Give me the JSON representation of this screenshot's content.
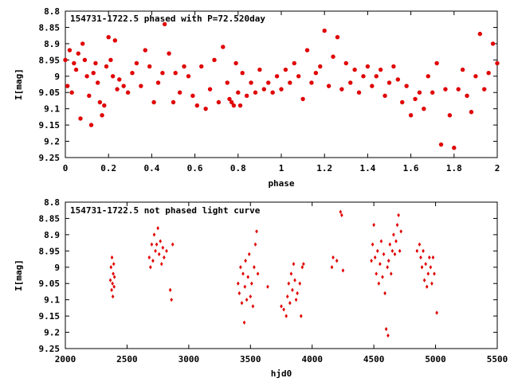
{
  "chart_data": [
    {
      "type": "scatter",
      "title": "154731-1722.5 phased with P=72.520day",
      "xlabel": "phase",
      "ylabel": "I[mag]",
      "xlim": [
        0,
        2
      ],
      "ylim": [
        9.25,
        8.8
      ],
      "y_inverted": true,
      "grid": false,
      "x_ticks": [
        0,
        0.2,
        0.4,
        0.6,
        0.8,
        1,
        1.2,
        1.4,
        1.6,
        1.8,
        2
      ],
      "x_tick_labels": [
        "0",
        "0.2",
        "0.4",
        "0.6",
        "0.8",
        "1",
        "1.2",
        "1.4",
        "1.6",
        "1.8",
        "2"
      ],
      "y_ticks": [
        8.8,
        8.85,
        8.9,
        8.95,
        9,
        9.05,
        9.1,
        9.15,
        9.2,
        9.25
      ],
      "y_tick_labels": [
        "8.8",
        "8.85",
        "8.9",
        "8.95",
        "9",
        "9.05",
        "9.1",
        "9.15",
        "9.2",
        "9.25"
      ],
      "marker": "filled-circle",
      "color": "#e00000",
      "points": [
        [
          0.0,
          8.95
        ],
        [
          0.01,
          9.03
        ],
        [
          0.02,
          8.92
        ],
        [
          0.03,
          9.05
        ],
        [
          0.04,
          8.96
        ],
        [
          0.05,
          8.98
        ],
        [
          0.06,
          8.93
        ],
        [
          0.07,
          9.13
        ],
        [
          0.08,
          8.9
        ],
        [
          0.09,
          8.95
        ],
        [
          0.1,
          9.0
        ],
        [
          0.11,
          9.06
        ],
        [
          0.12,
          9.15
        ],
        [
          0.13,
          8.99
        ],
        [
          0.14,
          8.96
        ],
        [
          0.15,
          9.02
        ],
        [
          0.16,
          9.08
        ],
        [
          0.17,
          9.12
        ],
        [
          0.18,
          9.09
        ],
        [
          0.19,
          8.97
        ],
        [
          0.2,
          8.88
        ],
        [
          0.21,
          8.95
        ],
        [
          0.22,
          9.0
        ],
        [
          0.23,
          8.89
        ],
        [
          0.24,
          9.04
        ],
        [
          0.25,
          9.01
        ],
        [
          0.27,
          9.03
        ],
        [
          0.29,
          9.05
        ],
        [
          0.31,
          8.99
        ],
        [
          0.33,
          8.96
        ],
        [
          0.35,
          9.03
        ],
        [
          0.37,
          8.92
        ],
        [
          0.39,
          8.97
        ],
        [
          0.41,
          9.08
        ],
        [
          0.43,
          9.02
        ],
        [
          0.45,
          8.99
        ],
        [
          0.46,
          8.84
        ],
        [
          0.48,
          8.93
        ],
        [
          0.5,
          9.08
        ],
        [
          0.51,
          8.99
        ],
        [
          0.53,
          9.05
        ],
        [
          0.55,
          8.97
        ],
        [
          0.57,
          9.0
        ],
        [
          0.59,
          9.06
        ],
        [
          0.61,
          9.09
        ],
        [
          0.63,
          8.97
        ],
        [
          0.65,
          9.1
        ],
        [
          0.67,
          9.04
        ],
        [
          0.69,
          8.95
        ],
        [
          0.71,
          9.08
        ],
        [
          0.73,
          8.91
        ],
        [
          0.75,
          9.02
        ],
        [
          0.76,
          9.07
        ],
        [
          0.77,
          9.08
        ],
        [
          0.78,
          9.09
        ],
        [
          0.79,
          8.96
        ],
        [
          0.8,
          9.05
        ],
        [
          0.81,
          9.09
        ],
        [
          0.82,
          8.99
        ],
        [
          0.84,
          9.06
        ],
        [
          0.86,
          9.02
        ],
        [
          0.88,
          9.05
        ],
        [
          0.9,
          8.98
        ],
        [
          0.92,
          9.04
        ],
        [
          0.94,
          9.02
        ],
        [
          0.96,
          9.05
        ],
        [
          0.98,
          9.0
        ],
        [
          1.0,
          9.04
        ],
        [
          1.02,
          8.98
        ],
        [
          1.04,
          9.02
        ],
        [
          1.06,
          8.96
        ],
        [
          1.08,
          9.0
        ],
        [
          1.1,
          9.07
        ],
        [
          1.12,
          8.92
        ],
        [
          1.14,
          9.02
        ],
        [
          1.16,
          8.99
        ],
        [
          1.18,
          8.97
        ],
        [
          1.2,
          8.86
        ],
        [
          1.22,
          9.03
        ],
        [
          1.24,
          8.94
        ],
        [
          1.26,
          8.88
        ],
        [
          1.28,
          9.04
        ],
        [
          1.3,
          8.96
        ],
        [
          1.32,
          9.02
        ],
        [
          1.34,
          8.98
        ],
        [
          1.36,
          9.05
        ],
        [
          1.38,
          9.0
        ],
        [
          1.4,
          8.97
        ],
        [
          1.42,
          9.03
        ],
        [
          1.44,
          9.0
        ],
        [
          1.46,
          8.98
        ],
        [
          1.48,
          9.06
        ],
        [
          1.5,
          9.02
        ],
        [
          1.52,
          8.97
        ],
        [
          1.54,
          9.01
        ],
        [
          1.56,
          9.08
        ],
        [
          1.58,
          9.03
        ],
        [
          1.6,
          9.12
        ],
        [
          1.62,
          9.07
        ],
        [
          1.64,
          9.05
        ],
        [
          1.66,
          9.1
        ],
        [
          1.68,
          9.0
        ],
        [
          1.7,
          9.05
        ],
        [
          1.72,
          8.96
        ],
        [
          1.74,
          9.21
        ],
        [
          1.76,
          9.04
        ],
        [
          1.78,
          9.12
        ],
        [
          1.8,
          9.22
        ],
        [
          1.82,
          9.04
        ],
        [
          1.84,
          8.98
        ],
        [
          1.86,
          9.06
        ],
        [
          1.88,
          9.11
        ],
        [
          1.9,
          9.0
        ],
        [
          1.92,
          8.87
        ],
        [
          1.94,
          9.04
        ],
        [
          1.96,
          8.99
        ],
        [
          1.98,
          8.9
        ],
        [
          2.0,
          8.96
        ]
      ]
    },
    {
      "type": "scatter",
      "title": "154731-1722.5 not phased light curve",
      "xlabel": "hjd0",
      "ylabel": "I[mag]",
      "xlim": [
        2000,
        5500
      ],
      "ylim": [
        9.25,
        8.8
      ],
      "y_inverted": true,
      "grid": false,
      "x_ticks": [
        2000,
        2500,
        3000,
        3500,
        4000,
        4500,
        5000,
        5500
      ],
      "x_tick_labels": [
        "2000",
        "2500",
        "3000",
        "3500",
        "4000",
        "4500",
        "5000",
        "5500"
      ],
      "y_ticks": [
        8.8,
        8.85,
        8.9,
        8.95,
        9,
        9.05,
        9.1,
        9.15,
        9.2,
        9.25
      ],
      "y_tick_labels": [
        "8.8",
        "8.85",
        "8.9",
        "8.95",
        "9",
        "9.05",
        "9.1",
        "9.15",
        "9.2",
        "9.25"
      ],
      "marker": "filled-diamond",
      "color": "#e00000",
      "points": [
        [
          2365,
          9.04
        ],
        [
          2370,
          9.0
        ],
        [
          2375,
          9.07
        ],
        [
          2378,
          8.97
        ],
        [
          2382,
          9.05
        ],
        [
          2385,
          9.09
        ],
        [
          2388,
          9.02
        ],
        [
          2392,
          8.99
        ],
        [
          2395,
          9.06
        ],
        [
          2398,
          9.03
        ],
        [
          2680,
          8.97
        ],
        [
          2690,
          9.0
        ],
        [
          2700,
          8.93
        ],
        [
          2710,
          8.98
        ],
        [
          2720,
          8.9
        ],
        [
          2730,
          8.95
        ],
        [
          2740,
          8.93
        ],
        [
          2750,
          8.88
        ],
        [
          2760,
          8.96
        ],
        [
          2770,
          8.92
        ],
        [
          2780,
          8.99
        ],
        [
          2790,
          8.94
        ],
        [
          2800,
          8.97
        ],
        [
          2820,
          8.95
        ],
        [
          2850,
          9.07
        ],
        [
          2860,
          9.1
        ],
        [
          2870,
          8.93
        ],
        [
          3400,
          9.05
        ],
        [
          3410,
          9.08
        ],
        [
          3420,
          9.0
        ],
        [
          3430,
          9.11
        ],
        [
          3440,
          9.02
        ],
        [
          3450,
          9.17
        ],
        [
          3455,
          9.06
        ],
        [
          3460,
          8.98
        ],
        [
          3470,
          9.1
        ],
        [
          3480,
          9.03
        ],
        [
          3490,
          8.96
        ],
        [
          3500,
          9.09
        ],
        [
          3510,
          9.05
        ],
        [
          3520,
          9.12
        ],
        [
          3530,
          9.0
        ],
        [
          3540,
          8.93
        ],
        [
          3550,
          8.89
        ],
        [
          3560,
          9.02
        ],
        [
          3640,
          9.06
        ],
        [
          3750,
          9.12
        ],
        [
          3770,
          9.13
        ],
        [
          3790,
          9.15
        ],
        [
          3800,
          9.09
        ],
        [
          3810,
          9.05
        ],
        [
          3820,
          9.11
        ],
        [
          3830,
          9.02
        ],
        [
          3840,
          9.07
        ],
        [
          3850,
          8.99
        ],
        [
          3860,
          9.04
        ],
        [
          3870,
          9.1
        ],
        [
          3880,
          9.08
        ],
        [
          3900,
          9.05
        ],
        [
          3910,
          9.15
        ],
        [
          3920,
          9.0
        ],
        [
          3930,
          8.99
        ],
        [
          4160,
          9.0
        ],
        [
          4170,
          8.97
        ],
        [
          4200,
          8.98
        ],
        [
          4230,
          8.83
        ],
        [
          4240,
          8.84
        ],
        [
          4250,
          9.01
        ],
        [
          4480,
          8.98
        ],
        [
          4490,
          8.93
        ],
        [
          4500,
          8.87
        ],
        [
          4510,
          8.97
        ],
        [
          4520,
          9.02
        ],
        [
          4530,
          8.95
        ],
        [
          4540,
          9.05
        ],
        [
          4550,
          8.99
        ],
        [
          4560,
          8.92
        ],
        [
          4570,
          9.03
        ],
        [
          4580,
          8.96
        ],
        [
          4590,
          9.08
        ],
        [
          4600,
          9.19
        ],
        [
          4610,
          9.0
        ],
        [
          4615,
          9.21
        ],
        [
          4620,
          8.98
        ],
        [
          4630,
          8.93
        ],
        [
          4640,
          9.02
        ],
        [
          4650,
          8.95
        ],
        [
          4660,
          8.9
        ],
        [
          4670,
          8.96
        ],
        [
          4680,
          8.92
        ],
        [
          4690,
          8.87
        ],
        [
          4700,
          8.84
        ],
        [
          4710,
          8.95
        ],
        [
          4720,
          8.89
        ],
        [
          4850,
          8.95
        ],
        [
          4870,
          8.93
        ],
        [
          4880,
          8.97
        ],
        [
          4890,
          9.0
        ],
        [
          4900,
          8.95
        ],
        [
          4910,
          9.04
        ],
        [
          4920,
          8.99
        ],
        [
          4930,
          9.06
        ],
        [
          4940,
          9.02
        ],
        [
          4950,
          8.97
        ],
        [
          4960,
          9.0
        ],
        [
          4970,
          9.05
        ],
        [
          4980,
          8.97
        ],
        [
          4990,
          9.02
        ],
        [
          5010,
          9.14
        ]
      ]
    }
  ]
}
